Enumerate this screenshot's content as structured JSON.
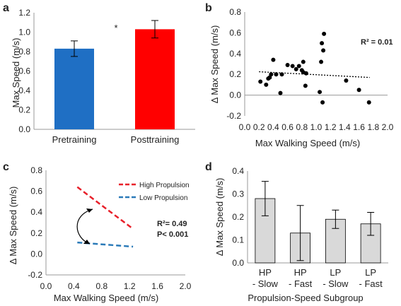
{
  "chart_data": [
    {
      "panel": "a",
      "type": "bar",
      "ylabel": "Max Speed (m/s)",
      "ylim": [
        0,
        1.2
      ],
      "yticks": [
        "0.0",
        "0.2",
        "0.4",
        "0.6",
        "0.8",
        "1.0",
        "1.2"
      ],
      "categories": [
        "Pretraining",
        "Posttraining"
      ],
      "values": [
        0.83,
        1.03
      ],
      "errors": [
        0.08,
        0.09
      ],
      "colors": [
        "#1f6fc4",
        "#ff0000"
      ],
      "annotation": "*"
    },
    {
      "panel": "b",
      "type": "scatter",
      "xlabel": "Max Walking Speed (m/s)",
      "ylabel": "Δ Max Speed (m/s)",
      "xlim": [
        0,
        2
      ],
      "ylim": [
        -0.2,
        0.8
      ],
      "xticks": [
        "0.0",
        "0.2",
        "0.4",
        "0.6",
        "0.8",
        "1.0",
        "1.2",
        "1.4",
        "1.6",
        "1.8",
        "2.0"
      ],
      "yticks": [
        "-0.2",
        "0.0",
        "0.2",
        "0.4",
        "0.6",
        "0.8"
      ],
      "r2_label": "R² = 0.01",
      "trendline": {
        "x": [
          0.2,
          1.75
        ],
        "y": [
          0.225,
          0.17
        ]
      },
      "points": [
        [
          0.22,
          0.13
        ],
        [
          0.3,
          0.1
        ],
        [
          0.33,
          0.16
        ],
        [
          0.35,
          0.17
        ],
        [
          0.37,
          0.2
        ],
        [
          0.4,
          0.34
        ],
        [
          0.44,
          0.2
        ],
        [
          0.5,
          0.02
        ],
        [
          0.52,
          0.2
        ],
        [
          0.6,
          0.29
        ],
        [
          0.67,
          0.28
        ],
        [
          0.72,
          0.25
        ],
        [
          0.76,
          0.28
        ],
        [
          0.8,
          0.24
        ],
        [
          0.82,
          0.22
        ],
        [
          0.82,
          0.32
        ],
        [
          0.85,
          0.09
        ],
        [
          0.86,
          0.21
        ],
        [
          1.05,
          0.03
        ],
        [
          1.07,
          0.32
        ],
        [
          1.08,
          0.5
        ],
        [
          1.09,
          -0.07
        ],
        [
          1.1,
          0.43
        ],
        [
          1.11,
          0.59
        ],
        [
          1.42,
          0.14
        ],
        [
          1.6,
          0.05
        ],
        [
          1.74,
          -0.07
        ]
      ]
    },
    {
      "panel": "c",
      "type": "line",
      "xlabel": "Max Walking Speed (m/s)",
      "ylabel": "Δ Max Speed (m/s)",
      "xlim": [
        0,
        2
      ],
      "ylim": [
        -0.2,
        0.8
      ],
      "xticks": [
        "0.0",
        "0.4",
        "0.8",
        "1.2",
        "1.6",
        "2.0"
      ],
      "yticks": [
        "-0.2",
        "0.0",
        "0.2",
        "0.4",
        "0.6",
        "0.8"
      ],
      "r2_label": "R²= 0.49",
      "p_label": "P< 0.001",
      "legend": "top-right",
      "series": [
        {
          "name": "High Propulsion",
          "color": "#e8202a",
          "x": [
            0.45,
            1.25
          ],
          "y": [
            0.64,
            0.24
          ]
        },
        {
          "name": "Low Propulsion",
          "color": "#2a7ab8",
          "x": [
            0.45,
            1.25
          ],
          "y": [
            0.11,
            0.07
          ]
        }
      ]
    },
    {
      "panel": "d",
      "type": "bar",
      "xlabel": "Propulsion-Speed Subgroup",
      "ylabel": "Δ Max Speed (m/s)",
      "ylim": [
        0,
        0.4
      ],
      "yticks": [
        "0.0",
        "0.1",
        "0.2",
        "0.3",
        "0.4"
      ],
      "categories": [
        [
          "HP",
          "- Slow"
        ],
        [
          "HP",
          "- Fast"
        ],
        [
          "LP",
          "- Slow"
        ],
        [
          "LP",
          "- Fast"
        ]
      ],
      "values": [
        0.28,
        0.13,
        0.19,
        0.17
      ],
      "errors": [
        0.075,
        0.12,
        0.04,
        0.05
      ],
      "color": "#d9d9d9"
    }
  ]
}
